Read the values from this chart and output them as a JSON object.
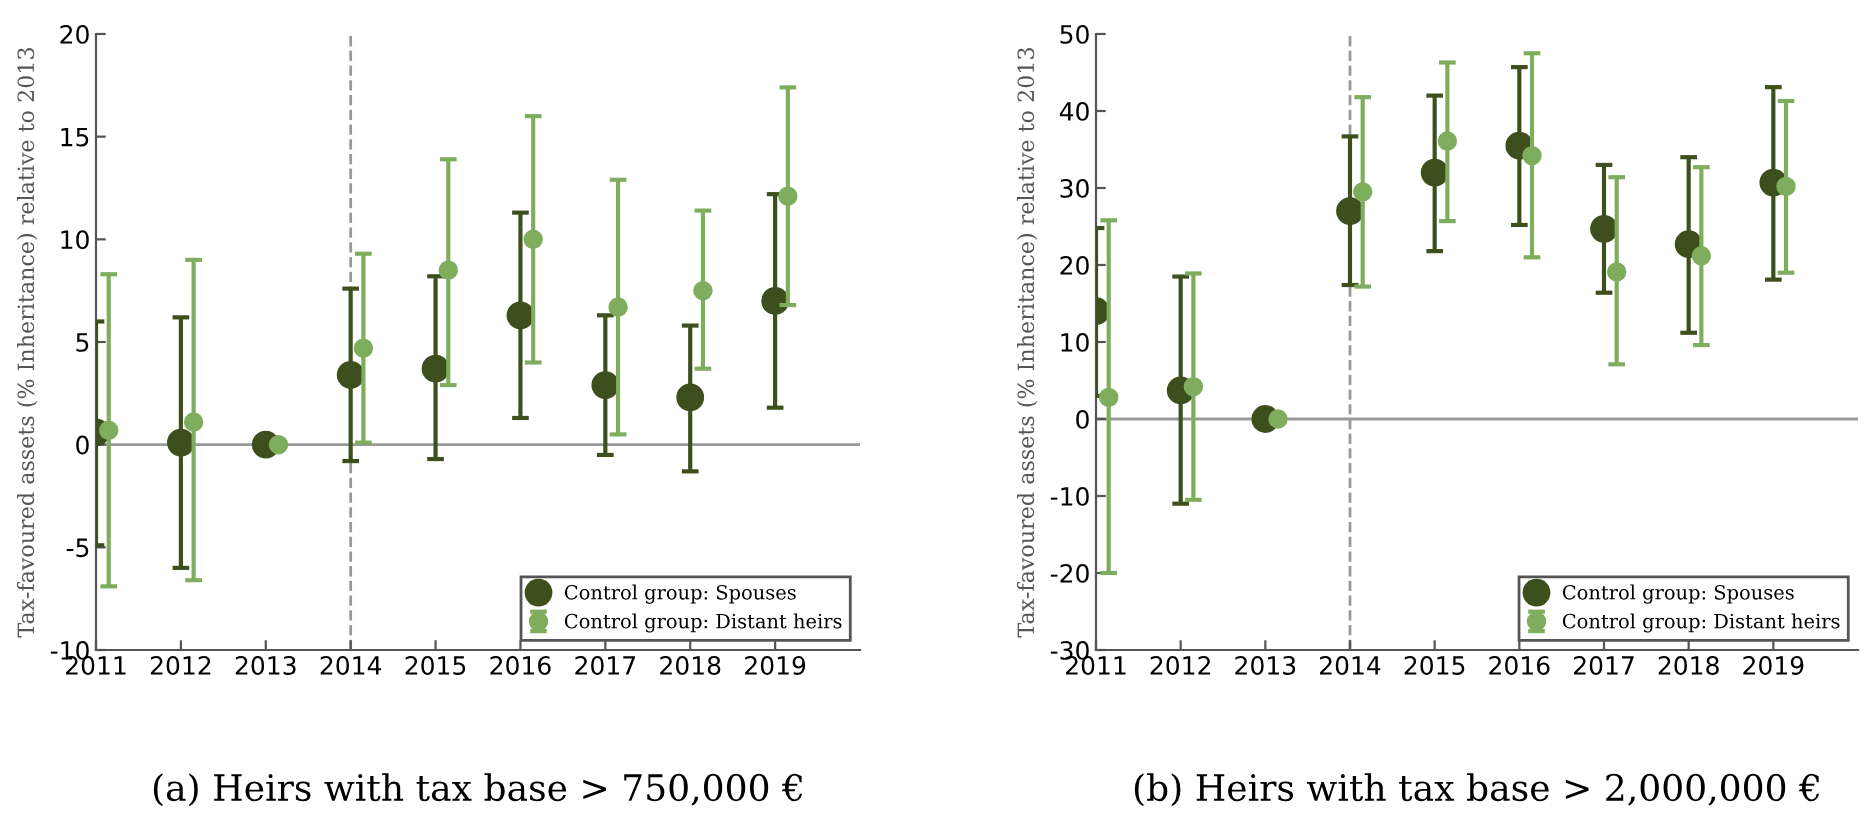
{
  "chart_data": [
    {
      "type": "scatter",
      "title": "(a) Heirs with tax base > 750,000 €",
      "ylabel": "Tax-favoured assets (% Inheritance) relative to 2013",
      "xlim": [
        2011,
        2020
      ],
      "xticks": [
        2011,
        2012,
        2013,
        2014,
        2015,
        2016,
        2017,
        2018,
        2019
      ],
      "ylim": [
        -10,
        20
      ],
      "yticks": [
        -10,
        -5,
        0,
        5,
        10,
        15,
        20
      ],
      "marker": "circle",
      "legend": "bottom right",
      "grid": false,
      "ref_lines": [
        {
          "axis": "x",
          "value": 2014,
          "label": null,
          "color": "#999999",
          "line_style": "dashed"
        },
        {
          "axis": "y",
          "value": 0,
          "label": null,
          "color": "#999999",
          "line_style": "solid"
        }
      ],
      "series": [
        {
          "name": "Control group: Spouses",
          "color": "#3d4f1c",
          "x": [
            2011,
            2012,
            2013,
            2014,
            2015,
            2016,
            2017,
            2018,
            2019
          ],
          "values": [
            0.6,
            0.1,
            0,
            3.4,
            3.7,
            6.3,
            2.9,
            2.3,
            7.0
          ],
          "errors": [
            [
              -4.9,
              6.0
            ],
            [
              -6.0,
              6.2
            ],
            null,
            [
              -0.8,
              7.6
            ],
            [
              -0.7,
              8.2
            ],
            [
              1.3,
              11.3
            ],
            [
              -0.5,
              6.3
            ],
            [
              -1.3,
              5.8
            ],
            [
              1.8,
              12.2
            ]
          ]
        },
        {
          "name": "Control group: Distant heirs",
          "color": "#7fad5e",
          "x": [
            2011.15,
            2012.15,
            2013.15,
            2014.15,
            2015.15,
            2016.15,
            2017.15,
            2018.15,
            2019.15
          ],
          "values": [
            0.7,
            1.1,
            0,
            4.7,
            8.5,
            10.0,
            6.7,
            7.5,
            12.1
          ],
          "errors": [
            [
              -6.9,
              8.3
            ],
            [
              -6.6,
              9.0
            ],
            null,
            [
              0.1,
              9.3
            ],
            [
              2.9,
              13.9
            ],
            [
              4.0,
              16.0
            ],
            [
              0.5,
              12.9
            ],
            [
              3.7,
              11.4
            ],
            [
              6.8,
              17.4
            ]
          ]
        }
      ]
    },
    {
      "type": "scatter",
      "title": "(b) Heirs with tax base > 2,000,000 €",
      "ylabel": "Tax-favoured assets (% Inheritance) relative to 2013",
      "xlim": [
        2011,
        2020
      ],
      "xticks": [
        2011,
        2012,
        2013,
        2014,
        2015,
        2016,
        2017,
        2018,
        2019
      ],
      "ylim": [
        -30,
        50
      ],
      "yticks": [
        -30,
        -20,
        -10,
        0,
        10,
        20,
        30,
        40,
        50
      ],
      "marker": "circle",
      "legend": "bottom right",
      "grid": false,
      "ref_lines": [
        {
          "axis": "x",
          "value": 2014,
          "label": null,
          "color": "#999999",
          "line_style": "dashed"
        },
        {
          "axis": "y",
          "value": 0,
          "label": null,
          "color": "#999999",
          "line_style": "solid"
        }
      ],
      "series": [
        {
          "name": "Control group: Spouses",
          "color": "#3d4f1c",
          "x": [
            2011,
            2012,
            2013,
            2014,
            2015,
            2016,
            2017,
            2018,
            2019
          ],
          "values": [
            14.0,
            3.7,
            0,
            27.0,
            32.0,
            35.5,
            24.7,
            22.7,
            30.7
          ],
          "errors": [
            [
              3.0,
              24.8
            ],
            [
              -11.0,
              18.5
            ],
            null,
            [
              17.4,
              36.7
            ],
            [
              21.8,
              42.0
            ],
            [
              25.2,
              45.7
            ],
            [
              16.4,
              33.0
            ],
            [
              11.2,
              34.0
            ],
            [
              18.1,
              43.1
            ]
          ]
        },
        {
          "name": "Control group: Distant heirs",
          "color": "#7fad5e",
          "x": [
            2011.15,
            2012.15,
            2013.15,
            2014.15,
            2015.15,
            2016.15,
            2017.15,
            2018.15,
            2019.15
          ],
          "values": [
            2.8,
            4.2,
            0,
            29.5,
            36.1,
            34.2,
            19.1,
            21.2,
            30.2
          ],
          "errors": [
            [
              -20.0,
              25.8
            ],
            [
              -10.5,
              18.9
            ],
            null,
            [
              17.2,
              41.8
            ],
            [
              25.7,
              46.3
            ],
            [
              21.0,
              47.5
            ],
            [
              7.1,
              31.4
            ],
            [
              9.6,
              32.7
            ],
            [
              19.0,
              41.3
            ]
          ]
        }
      ]
    }
  ]
}
